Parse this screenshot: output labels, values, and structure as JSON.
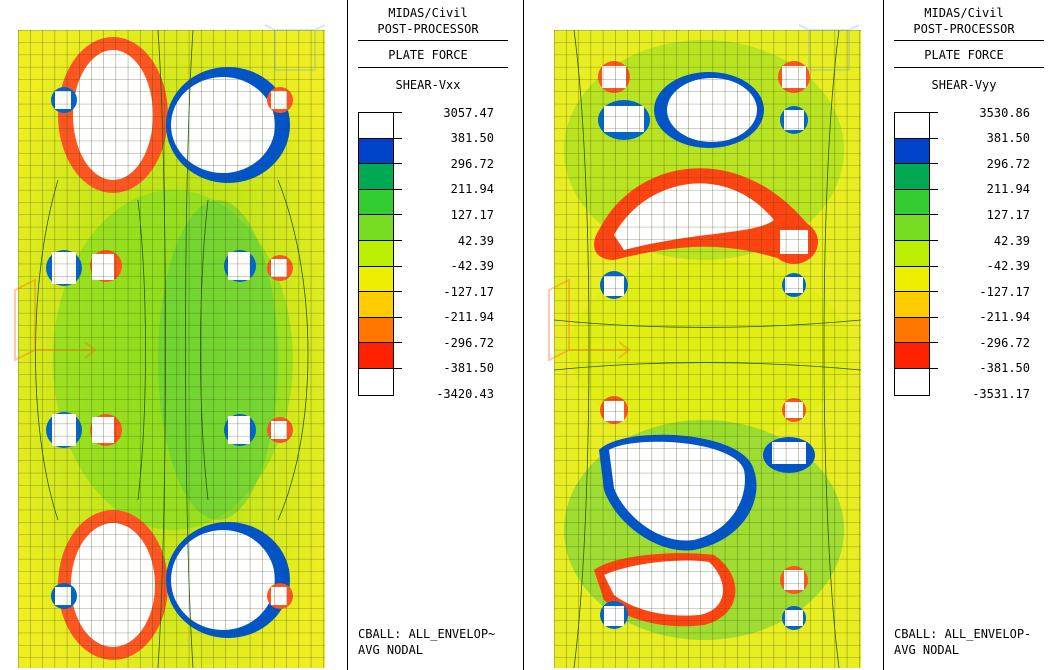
{
  "panels": [
    {
      "header_line1": "MIDAS/Civil",
      "header_line2": "POST-PROCESSOR",
      "header_line3": "PLATE FORCE",
      "component": "SHEAR-Vxx",
      "max": "3057.47",
      "labels": [
        "381.50",
        "296.72",
        "211.94",
        "127.17",
        "42.39",
        "-42.39",
        "-127.17",
        "-211.94",
        "-296.72",
        "-381.50"
      ],
      "min": "-3420.43",
      "footer1": "CBALL: ALL_ENVELOP~",
      "footer2": "AVG NODAL"
    },
    {
      "header_line1": "MIDAS/Civil",
      "header_line2": "POST-PROCESSOR",
      "header_line3": "PLATE FORCE",
      "component": "SHEAR-Vyy",
      "max": "3530.86",
      "labels": [
        "381.50",
        "296.72",
        "211.94",
        "127.17",
        "42.39",
        "-42.39",
        "-127.17",
        "-211.94",
        "-296.72",
        "-381.50"
      ],
      "min": "-3531.17",
      "footer1": "CBALL: ALL_ENVELOP-",
      "footer2": "AVG NODAL"
    }
  ],
  "colors": {
    "max_band": "#ffffff",
    "scale": [
      "#0044cc",
      "#00aa44",
      "#33cc33",
      "#77dd22",
      "#bbee00",
      "#ddee00",
      "#eeee00",
      "#ffbb00",
      "#ff6600",
      "#ff2200"
    ],
    "min_band": "#ffffff"
  },
  "icons": [
    "view-cube-icon",
    "gcs-axis-icon"
  ]
}
